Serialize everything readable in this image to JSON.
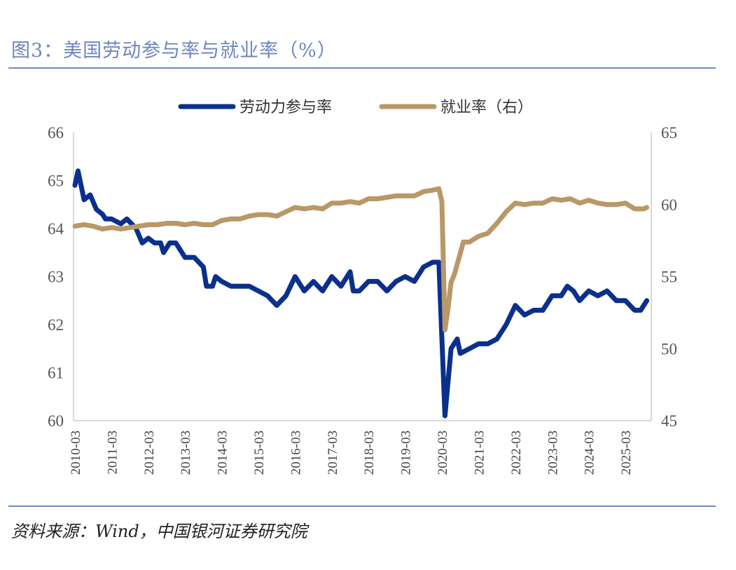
{
  "title": "图3：美国劳动参与率与就业率（%）",
  "source": "资料来源：Wind，中国银河证券研究院",
  "chart_data": {
    "type": "line",
    "title": "图3：美国劳动参与率与就业率（%）",
    "legend_position": "top",
    "grid": false,
    "y_left": {
      "lim": [
        60,
        66
      ],
      "ticks": [
        "60",
        "61",
        "62",
        "63",
        "64",
        "65",
        "66"
      ]
    },
    "y_right": {
      "lim": [
        45,
        65
      ],
      "ticks": [
        "45",
        "50",
        "55",
        "60",
        "65"
      ]
    },
    "x_ticks": [
      "2010-03",
      "2011-03",
      "2012-03",
      "2013-03",
      "2014-03",
      "2015-03",
      "2016-03",
      "2017-03",
      "2018-03",
      "2019-03",
      "2020-03",
      "2021-03",
      "2022-03",
      "2023-03",
      "2024-03",
      "2025-03"
    ],
    "x_range": [
      "2010-03",
      "2025-11"
    ],
    "series": [
      {
        "name": "劳动力参与率",
        "axis": "left",
        "color": "#0b308c",
        "x": [
          "2010-03",
          "2010-04",
          "2010-06",
          "2010-08",
          "2010-10",
          "2010-12",
          "2011-01",
          "2011-03",
          "2011-06",
          "2011-08",
          "2011-11",
          "2012-01",
          "2012-03",
          "2012-05",
          "2012-07",
          "2012-08",
          "2012-10",
          "2012-12",
          "2013-03",
          "2013-06",
          "2013-09",
          "2013-10",
          "2013-12",
          "2014-01",
          "2014-03",
          "2014-06",
          "2014-09",
          "2014-12",
          "2015-03",
          "2015-06",
          "2015-09",
          "2015-12",
          "2016-03",
          "2016-06",
          "2016-09",
          "2016-12",
          "2017-03",
          "2017-06",
          "2017-09",
          "2017-10",
          "2017-12",
          "2018-03",
          "2018-06",
          "2018-09",
          "2018-12",
          "2019-03",
          "2019-06",
          "2019-09",
          "2019-12",
          "2020-02",
          "2020-04",
          "2020-06",
          "2020-08",
          "2020-09",
          "2020-12",
          "2021-03",
          "2021-06",
          "2021-09",
          "2021-12",
          "2022-03",
          "2022-06",
          "2022-09",
          "2022-12",
          "2023-03",
          "2023-06",
          "2023-08",
          "2023-10",
          "2023-12",
          "2024-03",
          "2024-06",
          "2024-09",
          "2024-12",
          "2025-03",
          "2025-06",
          "2025-08",
          "2025-10"
        ],
        "values": [
          64.9,
          65.2,
          64.6,
          64.7,
          64.4,
          64.3,
          64.2,
          64.2,
          64.1,
          64.2,
          64.0,
          63.7,
          63.8,
          63.7,
          63.7,
          63.5,
          63.7,
          63.7,
          63.4,
          63.4,
          63.2,
          62.8,
          62.8,
          63.0,
          62.9,
          62.8,
          62.8,
          62.8,
          62.7,
          62.6,
          62.4,
          62.6,
          63.0,
          62.7,
          62.9,
          62.7,
          63.0,
          62.8,
          63.1,
          62.7,
          62.7,
          62.9,
          62.9,
          62.7,
          62.9,
          63.0,
          62.9,
          63.2,
          63.3,
          63.3,
          60.1,
          61.5,
          61.7,
          61.4,
          61.5,
          61.6,
          61.6,
          61.7,
          62.0,
          62.4,
          62.2,
          62.3,
          62.3,
          62.6,
          62.6,
          62.8,
          62.7,
          62.5,
          62.7,
          62.6,
          62.7,
          62.5,
          62.5,
          62.3,
          62.3,
          62.5
        ]
      },
      {
        "name": "就业率（右）",
        "axis": "right",
        "color": "#b99868",
        "x": [
          "2010-03",
          "2010-06",
          "2010-09",
          "2010-12",
          "2011-03",
          "2011-06",
          "2011-09",
          "2011-12",
          "2012-03",
          "2012-06",
          "2012-09",
          "2012-12",
          "2013-03",
          "2013-06",
          "2013-09",
          "2013-12",
          "2014-03",
          "2014-06",
          "2014-09",
          "2014-12",
          "2015-03",
          "2015-06",
          "2015-09",
          "2015-12",
          "2016-03",
          "2016-06",
          "2016-09",
          "2016-12",
          "2017-03",
          "2017-06",
          "2017-09",
          "2017-12",
          "2018-03",
          "2018-06",
          "2018-09",
          "2018-12",
          "2019-03",
          "2019-06",
          "2019-09",
          "2019-12",
          "2020-02",
          "2020-03",
          "2020-04",
          "2020-05",
          "2020-06",
          "2020-07",
          "2020-09",
          "2020-10",
          "2020-12",
          "2021-03",
          "2021-06",
          "2021-09",
          "2021-12",
          "2022-03",
          "2022-06",
          "2022-09",
          "2022-12",
          "2023-03",
          "2023-06",
          "2023-09",
          "2023-12",
          "2024-03",
          "2024-06",
          "2024-09",
          "2024-12",
          "2025-03",
          "2025-06",
          "2025-09",
          "2025-10"
        ],
        "values": [
          58.5,
          58.6,
          58.5,
          58.3,
          58.4,
          58.3,
          58.4,
          58.5,
          58.6,
          58.6,
          58.7,
          58.7,
          58.6,
          58.7,
          58.6,
          58.6,
          58.9,
          59.0,
          59.0,
          59.2,
          59.3,
          59.3,
          59.2,
          59.5,
          59.8,
          59.7,
          59.8,
          59.7,
          60.1,
          60.1,
          60.2,
          60.1,
          60.4,
          60.4,
          60.5,
          60.6,
          60.6,
          60.6,
          60.9,
          61.0,
          61.1,
          60.2,
          51.3,
          52.8,
          54.6,
          55.1,
          56.6,
          57.4,
          57.4,
          57.8,
          58.0,
          58.7,
          59.5,
          60.1,
          60.0,
          60.1,
          60.1,
          60.4,
          60.3,
          60.4,
          60.1,
          60.3,
          60.1,
          60.0,
          60.0,
          60.1,
          59.7,
          59.7,
          59.8
        ]
      }
    ]
  }
}
